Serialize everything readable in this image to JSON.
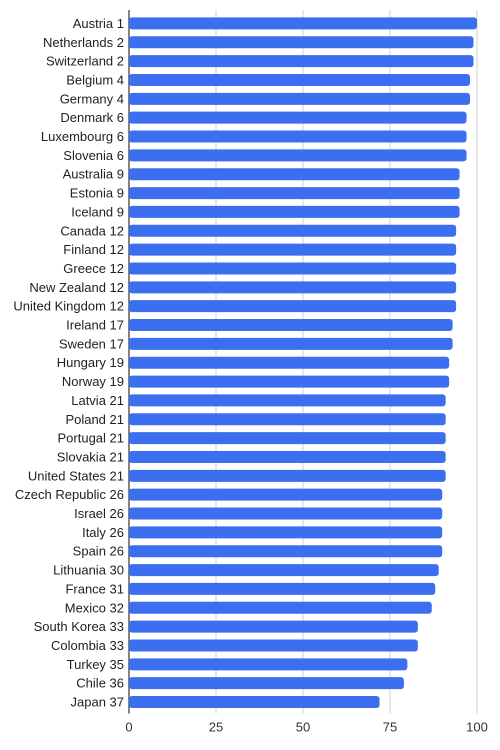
{
  "chart_data": {
    "type": "bar",
    "orientation": "horizontal",
    "title": "",
    "xlabel": "",
    "ylabel": "",
    "xlim": [
      0,
      100
    ],
    "x_ticks": [
      "0",
      "25",
      "50",
      "75",
      "100"
    ],
    "grid": true,
    "legend": "none",
    "bar_color": "#3b6ff0",
    "categories": [
      "Austria 1",
      "Netherlands 2",
      "Switzerland 2",
      "Belgium 4",
      "Germany 4",
      "Denmark 6",
      "Luxembourg 6",
      "Slovenia 6",
      "Australia 9",
      "Estonia 9",
      "Iceland 9",
      "Canada 12",
      "Finland 12",
      "Greece 12",
      "New Zealand 12",
      "United Kingdom 12",
      "Ireland 17",
      "Sweden 17",
      "Hungary 19",
      "Norway 19",
      "Latvia 21",
      "Poland 21",
      "Portugal 21",
      "Slovakia 21",
      "United States 21",
      "Czech Republic 26",
      "Israel 26",
      "Italy 26",
      "Spain 26",
      "Lithuania 30",
      "France 31",
      "Mexico 32",
      "South Korea 33",
      "Colombia 33",
      "Turkey 35",
      "Chile 36",
      "Japan 37"
    ],
    "values": [
      100,
      99,
      99,
      98,
      98,
      97,
      97,
      97,
      95,
      95,
      95,
      94,
      94,
      94,
      94,
      94,
      93,
      93,
      92,
      92,
      91,
      91,
      91,
      91,
      91,
      90,
      90,
      90,
      90,
      89,
      88,
      87,
      83,
      83,
      80,
      79,
      72
    ]
  }
}
